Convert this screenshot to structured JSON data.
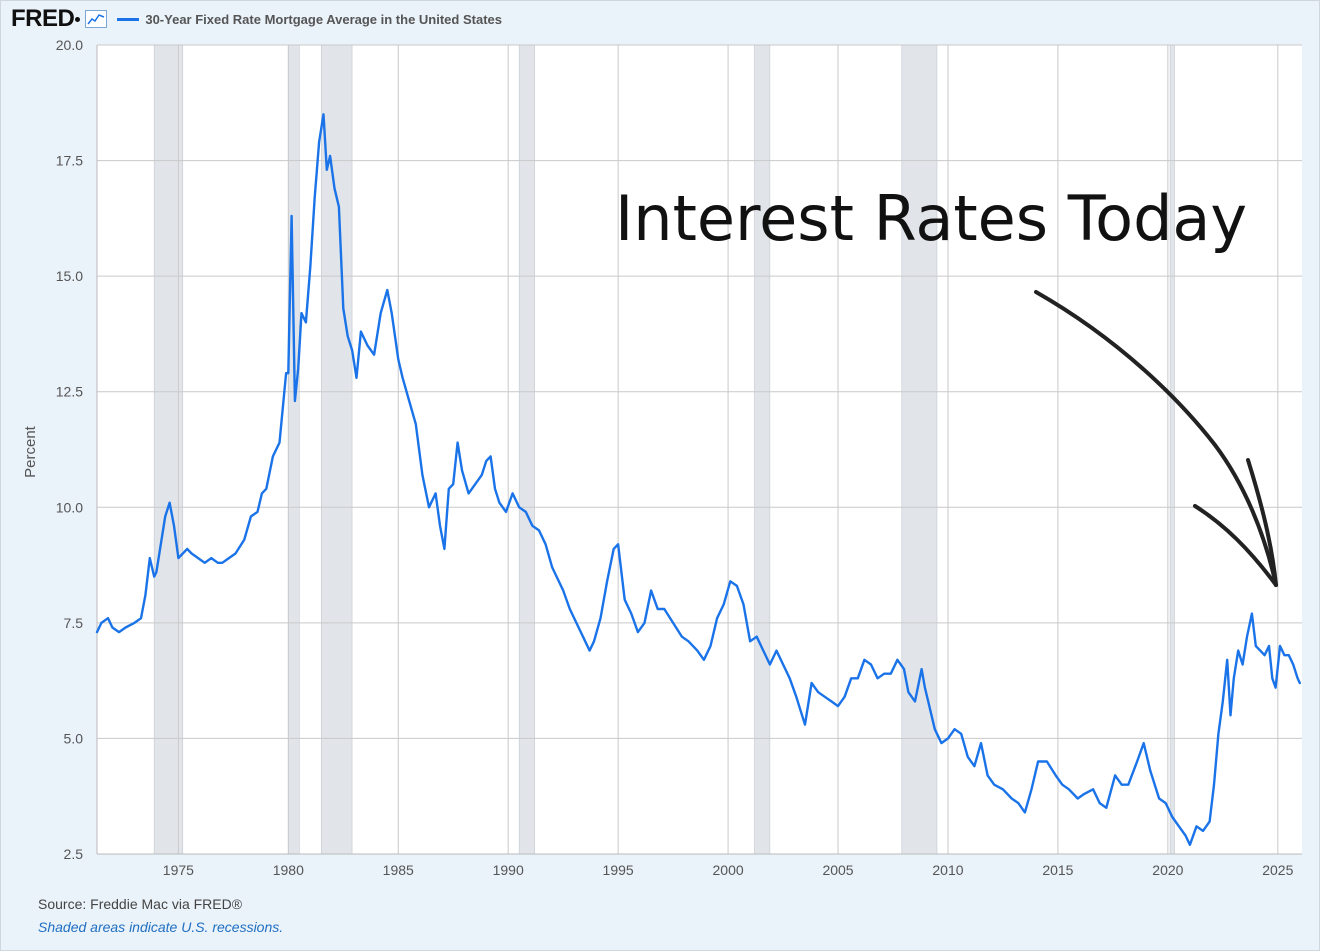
{
  "header": {
    "logo_text": "FRED",
    "series_title": "30-Year Fixed Rate Mortgage Average in the United States"
  },
  "footer": {
    "source": "Source: Freddie Mac via FRED®",
    "note": "Shaded areas indicate U.S. recessions."
  },
  "annotation": {
    "text": "Interest Rates Today"
  },
  "colors": {
    "series": "#1a73e8",
    "recession": "#e1e5ea",
    "grid": "#c9c9c9",
    "background": "#eaf2fa",
    "plot_background": "#ffffff"
  },
  "chart_data": {
    "type": "line",
    "title": "30-Year Fixed Rate Mortgage Average in the United States",
    "xlabel": "",
    "ylabel": "Percent",
    "xlim": [
      1971.3,
      2026.1
    ],
    "ylim": [
      2.5,
      20.0
    ],
    "y_ticks": [
      2.5,
      5.0,
      7.5,
      10.0,
      12.5,
      15.0,
      17.5,
      20.0
    ],
    "y_tick_labels": [
      "2.5",
      "5.0",
      "7.5",
      "10.0",
      "12.5",
      "15.0",
      "17.5",
      "20.0"
    ],
    "x_ticks": [
      1975,
      1980,
      1985,
      1990,
      1995,
      2000,
      2005,
      2010,
      2015,
      2020,
      2025
    ],
    "x_tick_labels": [
      "1975",
      "1980",
      "1985",
      "1990",
      "1995",
      "2000",
      "2005",
      "2010",
      "2015",
      "2020",
      "2025"
    ],
    "grid": true,
    "recessions": [
      [
        1973.9,
        1975.2
      ],
      [
        1980.0,
        1980.5
      ],
      [
        1981.5,
        1982.9
      ],
      [
        1990.5,
        1991.2
      ],
      [
        2001.2,
        2001.9
      ],
      [
        2007.9,
        2009.5
      ],
      [
        2020.1,
        2020.3
      ]
    ],
    "series": [
      {
        "name": "30-Year Fixed Rate Mortgage Average in the United States",
        "x": [
          1971.3,
          1971.5,
          1971.8,
          1972.0,
          1972.3,
          1972.6,
          1973.0,
          1973.3,
          1973.5,
          1973.7,
          1973.9,
          1974.0,
          1974.2,
          1974.4,
          1974.6,
          1974.8,
          1975.0,
          1975.2,
          1975.4,
          1975.6,
          1975.9,
          1976.2,
          1976.5,
          1976.8,
          1977.0,
          1977.3,
          1977.6,
          1978.0,
          1978.3,
          1978.6,
          1978.8,
          1979.0,
          1979.3,
          1979.6,
          1979.9,
          1980.0,
          1980.15,
          1980.3,
          1980.45,
          1980.6,
          1980.8,
          1981.0,
          1981.2,
          1981.4,
          1981.6,
          1981.75,
          1981.9,
          1982.1,
          1982.3,
          1982.5,
          1982.7,
          1982.9,
          1983.1,
          1983.3,
          1983.6,
          1983.9,
          1984.2,
          1984.5,
          1984.7,
          1985.0,
          1985.2,
          1985.5,
          1985.8,
          1986.1,
          1986.4,
          1986.7,
          1986.9,
          1987.1,
          1987.3,
          1987.5,
          1987.7,
          1987.9,
          1988.2,
          1988.5,
          1988.8,
          1989.0,
          1989.2,
          1989.4,
          1989.6,
          1989.9,
          1990.2,
          1990.5,
          1990.8,
          1991.1,
          1991.4,
          1991.7,
          1992.0,
          1992.2,
          1992.5,
          1992.8,
          1993.1,
          1993.4,
          1993.7,
          1993.9,
          1994.2,
          1994.5,
          1994.8,
          1995.0,
          1995.3,
          1995.6,
          1995.9,
          1996.2,
          1996.5,
          1996.8,
          1997.1,
          1997.5,
          1997.9,
          1998.2,
          1998.6,
          1998.9,
          1999.2,
          1999.5,
          1999.8,
          2000.1,
          2000.4,
          2000.7,
          2001.0,
          2001.3,
          2001.6,
          2001.9,
          2002.2,
          2002.5,
          2002.8,
          2003.1,
          2003.3,
          2003.5,
          2003.8,
          2004.1,
          2004.4,
          2004.7,
          2005.0,
          2005.3,
          2005.6,
          2005.9,
          2006.2,
          2006.5,
          2006.8,
          2007.1,
          2007.4,
          2007.7,
          2008.0,
          2008.2,
          2008.5,
          2008.8,
          2008.95,
          2009.1,
          2009.4,
          2009.7,
          2010.0,
          2010.3,
          2010.6,
          2010.9,
          2011.2,
          2011.5,
          2011.8,
          2012.1,
          2012.5,
          2012.9,
          2013.2,
          2013.5,
          2013.8,
          2014.1,
          2014.5,
          2014.9,
          2015.2,
          2015.5,
          2015.9,
          2016.2,
          2016.6,
          2016.9,
          2017.2,
          2017.6,
          2017.9,
          2018.2,
          2018.6,
          2018.9,
          2019.2,
          2019.6,
          2019.9,
          2020.2,
          2020.5,
          2020.8,
          2021.0,
          2021.3,
          2021.6,
          2021.9,
          2022.1,
          2022.3,
          2022.5,
          2022.7,
          2022.85,
          2023.0,
          2023.2,
          2023.4,
          2023.6,
          2023.82,
          2024.0,
          2024.2,
          2024.4,
          2024.6,
          2024.75,
          2024.9,
          2025.1,
          2025.3,
          2025.5,
          2025.7,
          2025.9,
          2026.0
        ],
        "values": [
          7.3,
          7.5,
          7.6,
          7.4,
          7.3,
          7.4,
          7.5,
          7.6,
          8.1,
          8.9,
          8.5,
          8.6,
          9.2,
          9.8,
          10.1,
          9.6,
          8.9,
          9.0,
          9.1,
          9.0,
          8.9,
          8.8,
          8.9,
          8.8,
          8.8,
          8.9,
          9.0,
          9.3,
          9.8,
          9.9,
          10.3,
          10.4,
          11.1,
          11.4,
          12.9,
          12.9,
          16.3,
          12.3,
          13.0,
          14.2,
          14.0,
          15.2,
          16.7,
          17.9,
          18.5,
          17.3,
          17.6,
          16.9,
          16.5,
          14.3,
          13.7,
          13.4,
          12.8,
          13.8,
          13.5,
          13.3,
          14.2,
          14.7,
          14.2,
          13.2,
          12.8,
          12.3,
          11.8,
          10.7,
          10.0,
          10.3,
          9.6,
          9.1,
          10.4,
          10.5,
          11.4,
          10.8,
          10.3,
          10.5,
          10.7,
          11.0,
          11.1,
          10.4,
          10.1,
          9.9,
          10.3,
          10.0,
          9.9,
          9.6,
          9.5,
          9.2,
          8.7,
          8.5,
          8.2,
          7.8,
          7.5,
          7.2,
          6.9,
          7.1,
          7.6,
          8.4,
          9.1,
          9.2,
          8.0,
          7.7,
          7.3,
          7.5,
          8.2,
          7.8,
          7.8,
          7.5,
          7.2,
          7.1,
          6.9,
          6.7,
          7.0,
          7.6,
          7.9,
          8.4,
          8.3,
          7.9,
          7.1,
          7.2,
          6.9,
          6.6,
          6.9,
          6.6,
          6.3,
          5.9,
          5.6,
          5.3,
          6.2,
          6.0,
          5.9,
          5.8,
          5.7,
          5.9,
          6.3,
          6.3,
          6.7,
          6.6,
          6.3,
          6.4,
          6.4,
          6.7,
          6.5,
          6.0,
          5.8,
          6.5,
          6.1,
          5.8,
          5.2,
          4.9,
          5.0,
          5.2,
          5.1,
          4.6,
          4.4,
          4.9,
          4.2,
          4.0,
          3.9,
          3.7,
          3.6,
          3.4,
          3.9,
          4.5,
          4.5,
          4.2,
          4.0,
          3.9,
          3.7,
          3.8,
          3.9,
          3.6,
          3.5,
          4.2,
          4.0,
          4.0,
          4.5,
          4.9,
          4.3,
          3.7,
          3.6,
          3.3,
          3.1,
          2.9,
          2.7,
          3.1,
          3.0,
          3.2,
          4.0,
          5.1,
          5.8,
          6.7,
          5.5,
          6.3,
          6.9,
          6.6,
          7.2,
          7.7,
          7.0,
          6.9,
          6.8,
          7.0,
          6.3,
          6.1,
          7.0,
          6.8,
          6.8,
          6.6,
          6.3,
          6.2
        ]
      }
    ]
  }
}
